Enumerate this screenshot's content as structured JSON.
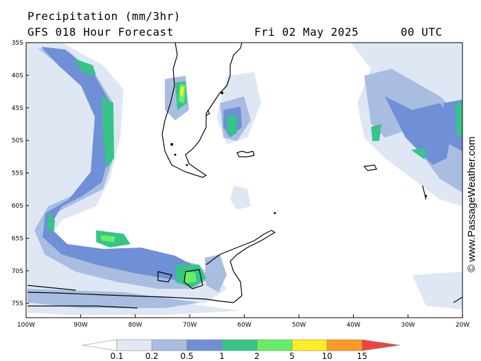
{
  "header": {
    "title": "Precipitation (mm/3hr)",
    "model": "GFS 018 Hour Forecast",
    "date": "Fri 02 May 2025",
    "time": "00 UTC"
  },
  "map": {
    "lat_labels": [
      "35S",
      "40S",
      "45S",
      "50S",
      "55S",
      "60S",
      "65S",
      "70S",
      "75S"
    ],
    "lon_labels": [
      "100W",
      "90W",
      "80W",
      "70W",
      "60W",
      "50W",
      "40W",
      "30W",
      "20W"
    ]
  },
  "legend": {
    "labels": [
      "0.1",
      "0.2",
      "0.5",
      "1",
      "2",
      "5",
      "10",
      "15"
    ],
    "colors": [
      "#ffffff",
      "#e2e8f4",
      "#a8bde0",
      "#6f8fd6",
      "#36c488",
      "#66ee66",
      "#ffee22",
      "#ff9922",
      "#ee4444"
    ]
  },
  "credit": "© www.PassageWeather.com"
}
